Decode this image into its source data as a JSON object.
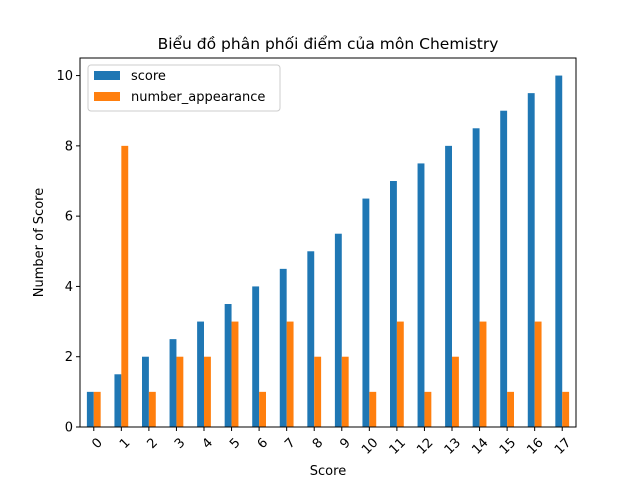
{
  "chart_data": {
    "type": "bar",
    "title": "Biểu đồ phân phối điểm của môn  Chemistry",
    "xlabel": "Score",
    "ylabel": "Number of Score",
    "categories": [
      "0",
      "1",
      "2",
      "3",
      "4",
      "5",
      "6",
      "7",
      "8",
      "9",
      "10",
      "11",
      "12",
      "13",
      "14",
      "15",
      "16",
      "17"
    ],
    "series": [
      {
        "name": "score",
        "color": "#1f77b4",
        "values": [
          1,
          1.5,
          2,
          2.5,
          3,
          3.5,
          4,
          4.5,
          5,
          5.5,
          6.5,
          7,
          7.5,
          8,
          8.5,
          9,
          9.5,
          10
        ]
      },
      {
        "name": "number_appearance",
        "color": "#ff7f0e",
        "values": [
          1,
          8,
          1,
          2,
          2,
          3,
          1,
          3,
          2,
          2,
          1,
          3,
          1,
          2,
          3,
          1,
          3,
          1
        ]
      }
    ],
    "ylim": [
      0,
      10.5
    ],
    "yticks": [
      0,
      2,
      4,
      6,
      8,
      10
    ],
    "x_tick_rotation": 45,
    "grid": false,
    "legend_position": "top-left"
  }
}
